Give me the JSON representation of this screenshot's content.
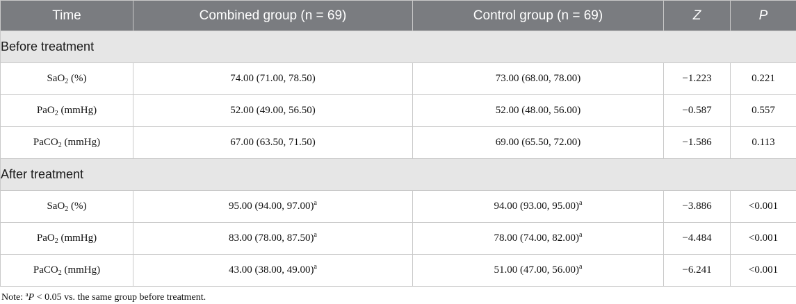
{
  "header": {
    "time": "Time",
    "combined": "Combined group (n = 69)",
    "control": "Control group (n = 69)",
    "z": "Z",
    "p": "P"
  },
  "sections": [
    {
      "title": "Before treatment",
      "rows": [
        {
          "param": "SaO",
          "sub": "2",
          "unit": " (%)",
          "combined": "74.00 (71.00, 78.50)",
          "combined_sup": "",
          "control": "73.00 (68.00, 78.00)",
          "control_sup": "",
          "z": "−1.223",
          "p": "0.221"
        },
        {
          "param": "PaO",
          "sub": "2",
          "unit": " (mmHg)",
          "combined": "52.00 (49.00, 56.50)",
          "combined_sup": "",
          "control": "52.00 (48.00, 56.00)",
          "control_sup": "",
          "z": "−0.587",
          "p": "0.557"
        },
        {
          "param": "PaCO",
          "sub": "2",
          "unit": " (mmHg)",
          "combined": "67.00 (63.50, 71.50)",
          "combined_sup": "",
          "control": "69.00 (65.50, 72.00)",
          "control_sup": "",
          "z": "−1.586",
          "p": "0.113"
        }
      ]
    },
    {
      "title": "After treatment",
      "rows": [
        {
          "param": "SaO",
          "sub": "2",
          "unit": " (%)",
          "combined": "95.00 (94.00, 97.00)",
          "combined_sup": "a",
          "control": "94.00 (93.00, 95.00)",
          "control_sup": "a",
          "z": "−3.886",
          "p": "<0.001"
        },
        {
          "param": "PaO",
          "sub": "2",
          "unit": " (mmHg)",
          "combined": "83.00 (78.00, 87.50)",
          "combined_sup": "a",
          "control": "78.00 (74.00, 82.00)",
          "control_sup": "a",
          "z": "−4.484",
          "p": "<0.001"
        },
        {
          "param": "PaCO",
          "sub": "2",
          "unit": " (mmHg)",
          "combined": "43.00 (38.00, 49.00)",
          "combined_sup": "a",
          "control": "51.00 (47.00, 56.00)",
          "control_sup": "a",
          "z": "−6.241",
          "p": "<0.001"
        }
      ]
    }
  ],
  "note": {
    "prefix": "Note: ",
    "sup": "a",
    "italic": "P",
    "text": " < 0.05 vs. the same group before treatment."
  }
}
